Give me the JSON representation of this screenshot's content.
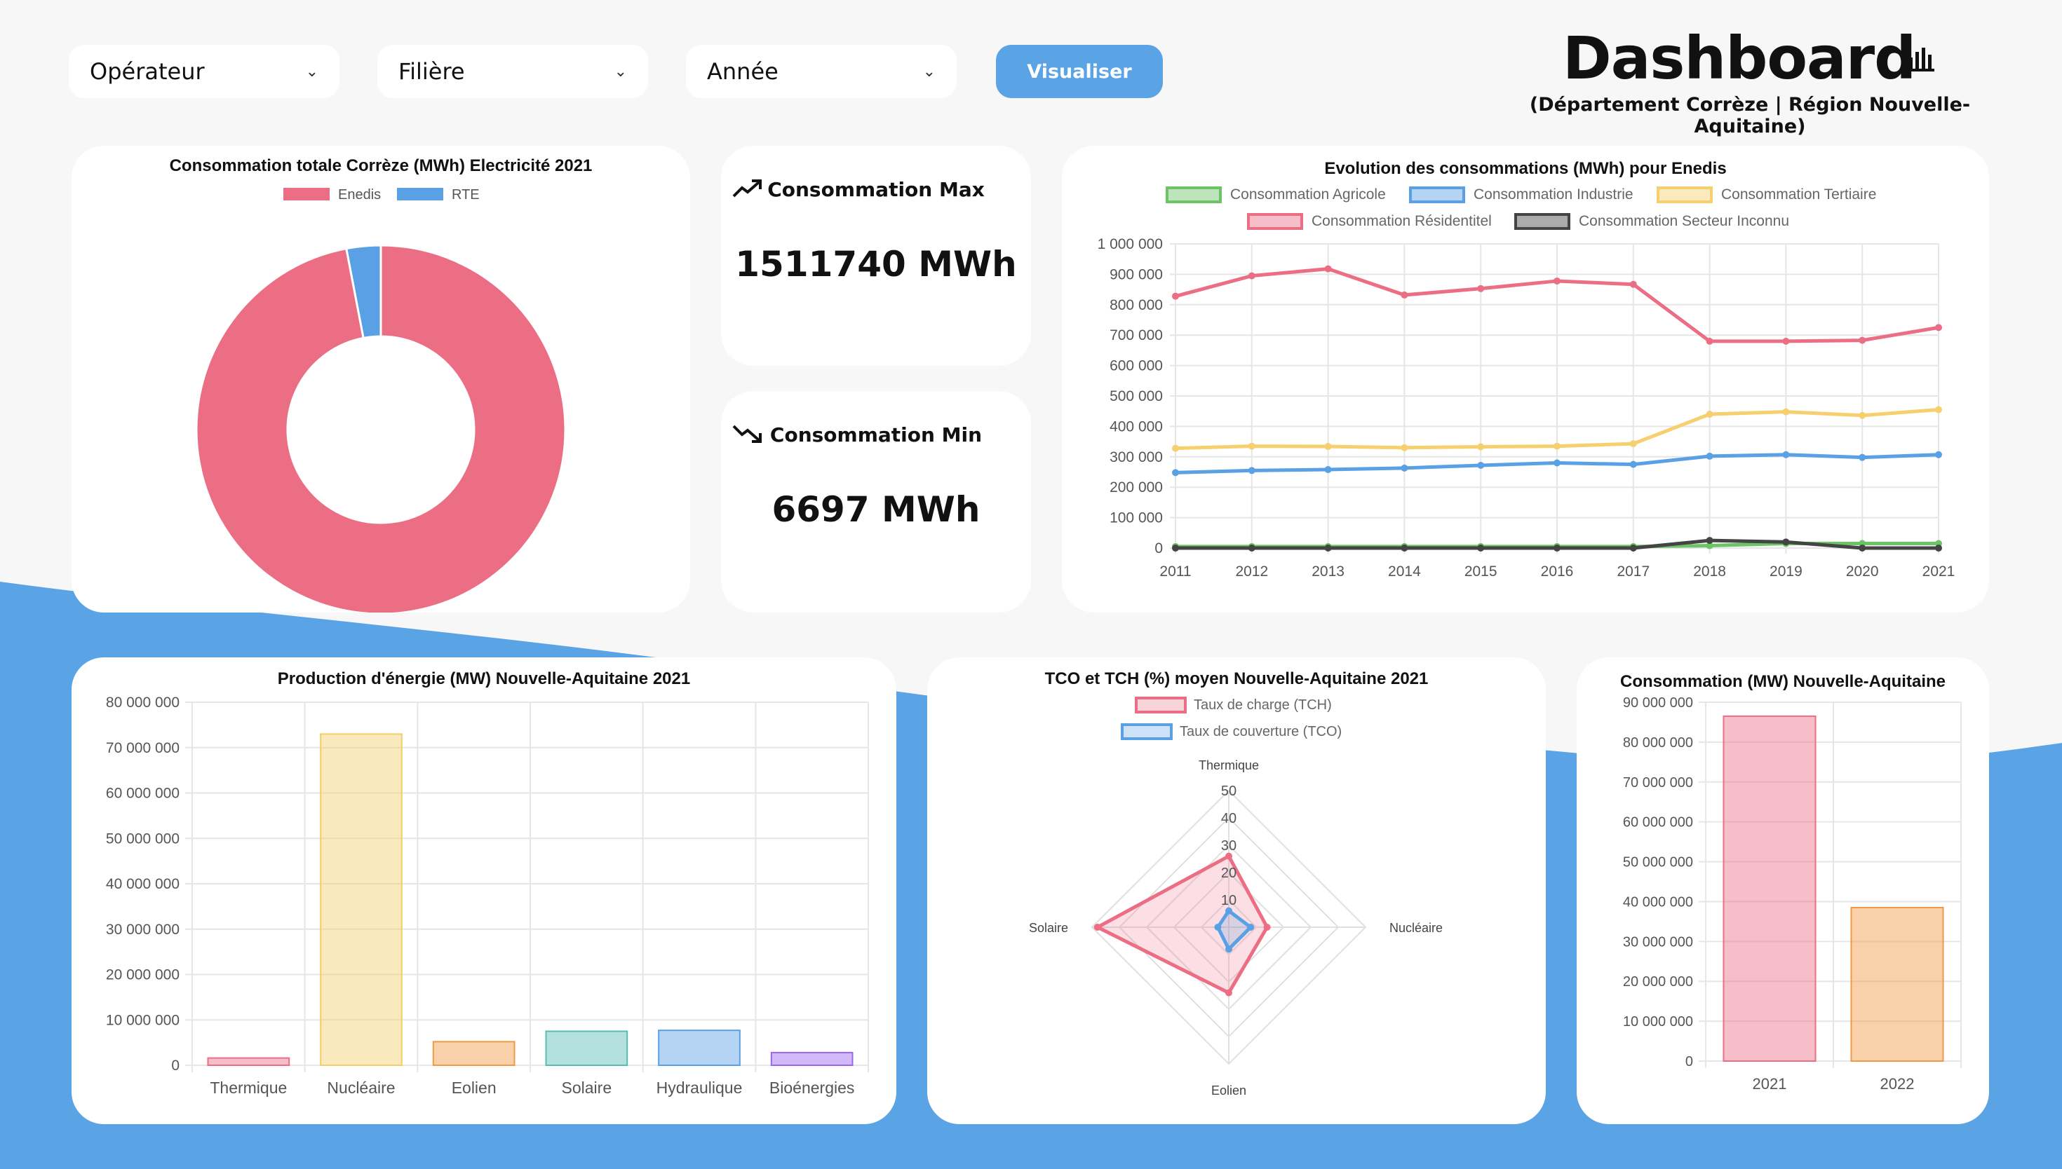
{
  "filters": {
    "operator": "Opérateur",
    "filiere": "Filière",
    "annee": "Année",
    "visualize": "Visualiser"
  },
  "header": {
    "title": "Dashboard",
    "subtitle": "(Département Corrèze | Région Nouvelle-Aquitaine)"
  },
  "kpi": {
    "max_label": "Consommation Max",
    "max_value": "1511740 MWh",
    "min_label": "Consommation Min",
    "min_value": "6697 MWh"
  },
  "colors": {
    "accent": "#5aa4e6",
    "red": "#ec6e85",
    "blue": "#5aa0e4",
    "yellow": "#f6d06f",
    "green": "#6cc465",
    "dark": "#444444"
  },
  "chart_data": [
    {
      "type": "doughnut",
      "title": "Consommation totale Corrèze (MWh) Electricité 2021",
      "categories": [
        "Enedis",
        "RTE"
      ],
      "values": [
        97,
        3
      ],
      "legend": "top"
    },
    {
      "type": "line",
      "title": "Evolution des consommations (MWh) pour Enedis",
      "x": [
        "2011",
        "2012",
        "2013",
        "2014",
        "2015",
        "2016",
        "2017",
        "2018",
        "2019",
        "2020",
        "2021"
      ],
      "yticks": [
        "1 000 000",
        "900 000",
        "800 000",
        "700 000",
        "600 000",
        "500 000",
        "400 000",
        "300 000",
        "200 000",
        "100 000",
        "0"
      ],
      "ylim": [
        0,
        1000000
      ],
      "series": [
        {
          "name": "Consommation Agricole",
          "values": [
            5000,
            5000,
            5000,
            5000,
            5000,
            5000,
            5000,
            8000,
            15000,
            15000,
            15000
          ]
        },
        {
          "name": "Consommation Industrie",
          "values": [
            248000,
            255000,
            258000,
            263000,
            272000,
            280000,
            275000,
            302000,
            307000,
            298000,
            307000
          ]
        },
        {
          "name": "Consommation Tertiaire",
          "values": [
            328000,
            335000,
            334000,
            330000,
            333000,
            335000,
            343000,
            440000,
            448000,
            436000,
            455000
          ]
        },
        {
          "name": "Consommation Résidentitel",
          "values": [
            828000,
            895000,
            918000,
            832000,
            853000,
            878000,
            867000,
            680000,
            680000,
            683000,
            725000
          ]
        },
        {
          "name": "Consommation Secteur Inconnu",
          "values": [
            0,
            0,
            0,
            0,
            0,
            0,
            0,
            25000,
            20000,
            0,
            0
          ]
        }
      ],
      "legend": "top"
    },
    {
      "type": "bar",
      "title": "Production d'énergie (MW) Nouvelle-Aquitaine 2021",
      "categories": [
        "Thermique",
        "Nucléaire",
        "Eolien",
        "Solaire",
        "Hydraulique",
        "Bioénergies"
      ],
      "values": [
        1600000,
        73000000,
        5200000,
        7500000,
        7700000,
        2800000
      ],
      "yticks": [
        "80 000 000",
        "70 000 000",
        "60 000 000",
        "50 000 000",
        "40 000 000",
        "30 000 000",
        "20 000 000",
        "10 000 000",
        "0"
      ],
      "ylim": [
        0,
        80000000
      ]
    },
    {
      "type": "radar",
      "title": "TCO et TCH (%) moyen Nouvelle-Aquitaine 2021",
      "axes": [
        "Thermique",
        "Nucléaire",
        "Eolien",
        "Solaire"
      ],
      "rticks": [
        "10",
        "20",
        "30",
        "40",
        "50"
      ],
      "rlim": [
        0,
        50
      ],
      "series": [
        {
          "name": "Taux de charge (TCH)",
          "values": [
            26,
            14,
            24,
            48
          ]
        },
        {
          "name": "Taux de couverture (TCO)",
          "values": [
            6,
            8,
            8,
            4
          ]
        }
      ],
      "legend": "top"
    },
    {
      "type": "bar",
      "title": "Consommation (MW) Nouvelle-Aquitaine",
      "categories": [
        "2021",
        "2022"
      ],
      "values": [
        86500000,
        38500000
      ],
      "yticks": [
        "90 000 000",
        "80 000 000",
        "70 000 000",
        "60 000 000",
        "50 000 000",
        "40 000 000",
        "30 000 000",
        "20 000 000",
        "10 000 000",
        "0"
      ],
      "ylim": [
        0,
        90000000
      ]
    }
  ]
}
